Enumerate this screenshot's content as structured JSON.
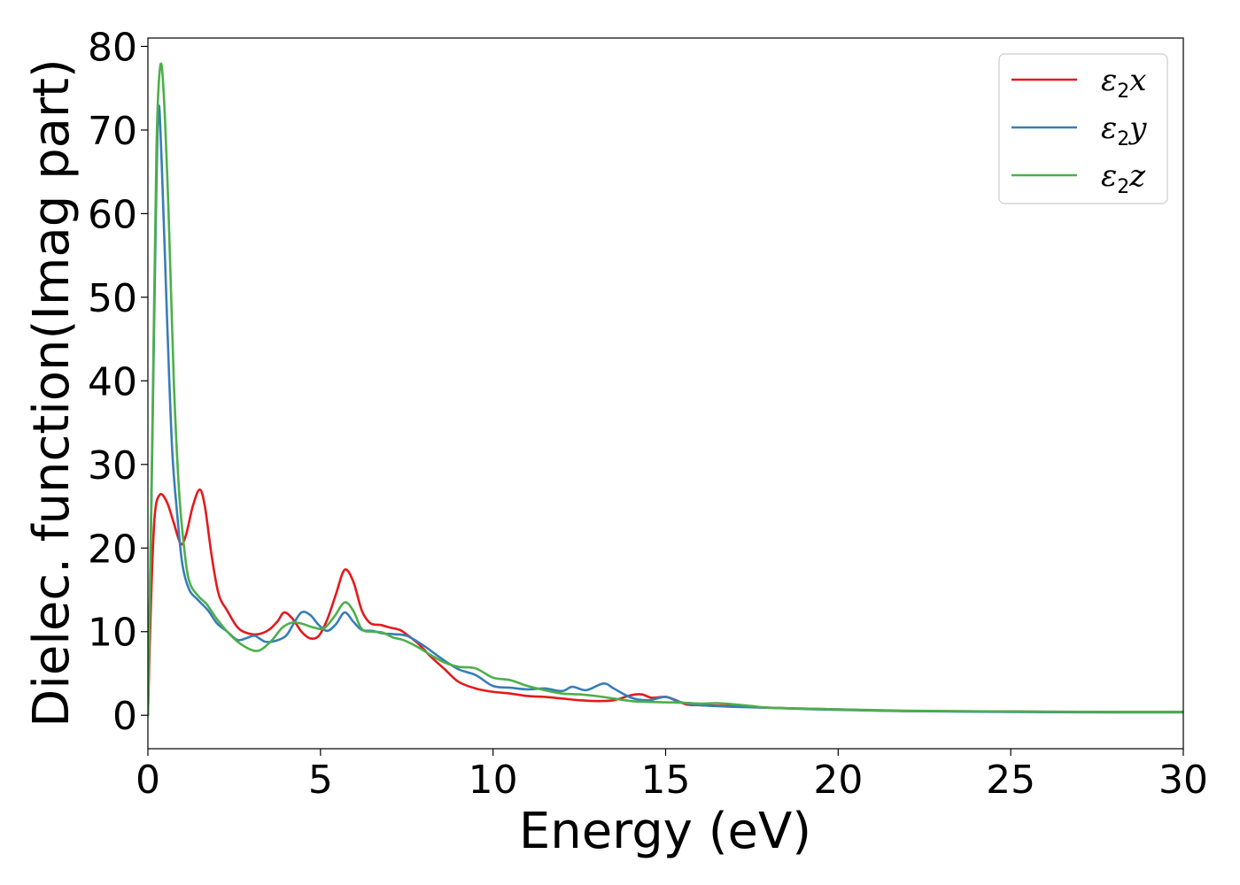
{
  "chart_data": {
    "type": "line",
    "title": "",
    "xlabel": "Energy (eV)",
    "ylabel": "Dielec. function(Imag part)",
    "xlim": [
      0,
      30
    ],
    "ylim": [
      -4,
      81
    ],
    "xticks": [
      0,
      5,
      10,
      15,
      20,
      25,
      30
    ],
    "yticks": [
      0,
      10,
      20,
      30,
      40,
      50,
      60,
      70,
      80
    ],
    "grid": false,
    "legend": {
      "placement": "top-right"
    },
    "series": [
      {
        "name": "ε₂x",
        "legend_base": "ε",
        "legend_sub": "2",
        "legend_tail": "x",
        "color": "#e41a1c",
        "points": [
          [
            0,
            0
          ],
          [
            0.1,
            15
          ],
          [
            0.2,
            24
          ],
          [
            0.35,
            26.4
          ],
          [
            0.55,
            25.5
          ],
          [
            0.75,
            23
          ],
          [
            0.95,
            20.5
          ],
          [
            1.1,
            21.5
          ],
          [
            1.3,
            25
          ],
          [
            1.5,
            27
          ],
          [
            1.65,
            25
          ],
          [
            1.85,
            19
          ],
          [
            2.05,
            14.5
          ],
          [
            2.3,
            12.5
          ],
          [
            2.6,
            10.5
          ],
          [
            2.9,
            9.8
          ],
          [
            3.2,
            9.7
          ],
          [
            3.5,
            10.2
          ],
          [
            3.75,
            11.2
          ],
          [
            3.95,
            12.3
          ],
          [
            4.2,
            11.5
          ],
          [
            4.45,
            10
          ],
          [
            4.7,
            9.2
          ],
          [
            4.95,
            9.5
          ],
          [
            5.2,
            11.5
          ],
          [
            5.45,
            14.5
          ],
          [
            5.7,
            17.4
          ],
          [
            5.95,
            16
          ],
          [
            6.2,
            12.5
          ],
          [
            6.45,
            11
          ],
          [
            6.75,
            10.8
          ],
          [
            7.0,
            10.5
          ],
          [
            7.3,
            10.2
          ],
          [
            7.55,
            9.5
          ],
          [
            7.85,
            8.5
          ],
          [
            8.2,
            7
          ],
          [
            8.6,
            5.5
          ],
          [
            9.0,
            4
          ],
          [
            9.5,
            3.2
          ],
          [
            10,
            2.8
          ],
          [
            10.5,
            2.6
          ],
          [
            11,
            2.3
          ],
          [
            11.5,
            2.2
          ],
          [
            12,
            2
          ],
          [
            12.5,
            1.8
          ],
          [
            13,
            1.7
          ],
          [
            13.5,
            1.8
          ],
          [
            14,
            2.4
          ],
          [
            14.3,
            2.5
          ],
          [
            14.6,
            2.1
          ],
          [
            15,
            2.2
          ],
          [
            15.3,
            1.8
          ],
          [
            15.6,
            1.3
          ],
          [
            16,
            1.2
          ],
          [
            17,
            1.1
          ],
          [
            18,
            0.9
          ],
          [
            19,
            0.8
          ],
          [
            20,
            0.7
          ],
          [
            22,
            0.5
          ],
          [
            25,
            0.45
          ],
          [
            28,
            0.4
          ],
          [
            30,
            0.4
          ]
        ]
      },
      {
        "name": "ε₂y",
        "legend_base": "ε",
        "legend_sub": "2",
        "legend_tail": "y",
        "color": "#377eb8",
        "points": [
          [
            0,
            0
          ],
          [
            0.1,
            25
          ],
          [
            0.2,
            52
          ],
          [
            0.3,
            72.3
          ],
          [
            0.4,
            66
          ],
          [
            0.55,
            48
          ],
          [
            0.7,
            32
          ],
          [
            0.85,
            24
          ],
          [
            1.0,
            18
          ],
          [
            1.2,
            15
          ],
          [
            1.45,
            13.8
          ],
          [
            1.75,
            12.5
          ],
          [
            2.0,
            11
          ],
          [
            2.3,
            10
          ],
          [
            2.6,
            9
          ],
          [
            2.9,
            9.3
          ],
          [
            3.1,
            9.5
          ],
          [
            3.4,
            8.8
          ],
          [
            3.7,
            8.9
          ],
          [
            4.0,
            9.5
          ],
          [
            4.2,
            10.8
          ],
          [
            4.45,
            12.3
          ],
          [
            4.7,
            12
          ],
          [
            4.95,
            10.8
          ],
          [
            5.2,
            10.1
          ],
          [
            5.45,
            10.9
          ],
          [
            5.7,
            12.3
          ],
          [
            5.95,
            11.2
          ],
          [
            6.2,
            10.2
          ],
          [
            6.5,
            10.1
          ],
          [
            6.8,
            9.8
          ],
          [
            7.1,
            9.7
          ],
          [
            7.5,
            9.5
          ],
          [
            8.0,
            8.3
          ],
          [
            8.5,
            6.8
          ],
          [
            9.0,
            5.5
          ],
          [
            9.5,
            4.8
          ],
          [
            10,
            3.5
          ],
          [
            10.5,
            3.3
          ],
          [
            11,
            3.1
          ],
          [
            11.5,
            3.2
          ],
          [
            12,
            2.9
          ],
          [
            12.3,
            3.4
          ],
          [
            12.7,
            3
          ],
          [
            13.2,
            3.8
          ],
          [
            13.5,
            3.2
          ],
          [
            14,
            2.1
          ],
          [
            14.5,
            1.8
          ],
          [
            15,
            2.2
          ],
          [
            15.4,
            1.6
          ],
          [
            16,
            1.2
          ],
          [
            17,
            1.0
          ],
          [
            18,
            0.9
          ],
          [
            19,
            0.75
          ],
          [
            20,
            0.65
          ],
          [
            22,
            0.5
          ],
          [
            25,
            0.4
          ],
          [
            28,
            0.35
          ],
          [
            30,
            0.35
          ]
        ]
      },
      {
        "name": "ε₂z",
        "legend_base": "ε",
        "legend_sub": "2",
        "legend_tail": "z",
        "color": "#4daf4a",
        "points": [
          [
            0,
            0
          ],
          [
            0.05,
            12
          ],
          [
            0.15,
            40
          ],
          [
            0.25,
            68
          ],
          [
            0.35,
            77.4
          ],
          [
            0.45,
            75
          ],
          [
            0.6,
            60
          ],
          [
            0.75,
            40
          ],
          [
            0.9,
            27
          ],
          [
            1.05,
            20
          ],
          [
            1.2,
            16
          ],
          [
            1.45,
            14.3
          ],
          [
            1.7,
            13.3
          ],
          [
            2.0,
            11.5
          ],
          [
            2.3,
            10
          ],
          [
            2.6,
            8.8
          ],
          [
            2.9,
            8
          ],
          [
            3.1,
            7.7
          ],
          [
            3.3,
            7.9
          ],
          [
            3.6,
            9
          ],
          [
            3.9,
            10.5
          ],
          [
            4.2,
            11.1
          ],
          [
            4.5,
            10.9
          ],
          [
            4.8,
            10.5
          ],
          [
            5.1,
            10.4
          ],
          [
            5.4,
            11.8
          ],
          [
            5.7,
            13.5
          ],
          [
            5.95,
            12.5
          ],
          [
            6.2,
            10.3
          ],
          [
            6.5,
            10
          ],
          [
            6.8,
            9.9
          ],
          [
            7.1,
            9.3
          ],
          [
            7.4,
            9
          ],
          [
            7.8,
            8.2
          ],
          [
            8.2,
            7.2
          ],
          [
            8.6,
            6.3
          ],
          [
            9.0,
            5.8
          ],
          [
            9.5,
            5.6
          ],
          [
            10,
            4.5
          ],
          [
            10.5,
            4.2
          ],
          [
            11,
            3.5
          ],
          [
            11.5,
            3
          ],
          [
            12,
            2.6
          ],
          [
            12.5,
            2.5
          ],
          [
            13,
            2.3
          ],
          [
            13.5,
            2.0
          ],
          [
            14,
            1.7
          ],
          [
            14.5,
            1.6
          ],
          [
            15,
            1.55
          ],
          [
            15.5,
            1.5
          ],
          [
            16,
            1.4
          ],
          [
            16.5,
            1.45
          ],
          [
            17,
            1.3
          ],
          [
            17.5,
            1.1
          ],
          [
            18,
            0.9
          ],
          [
            19,
            0.8
          ],
          [
            20,
            0.7
          ],
          [
            22,
            0.55
          ],
          [
            25,
            0.45
          ],
          [
            28,
            0.4
          ],
          [
            30,
            0.4
          ]
        ]
      }
    ]
  }
}
